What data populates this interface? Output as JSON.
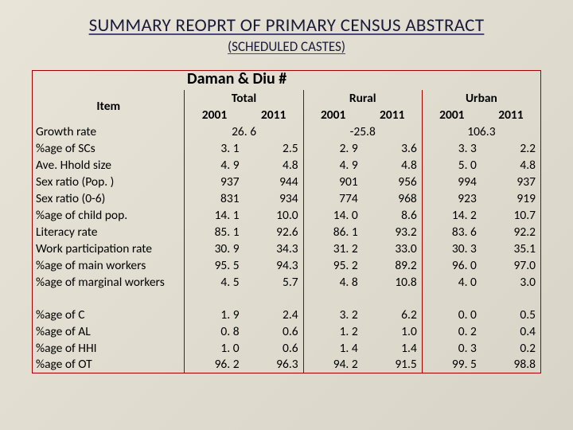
{
  "title": "SUMMARY REOPRT OF PRIMARY CENSUS ABSTRACT",
  "subtitle": "(SCHEDULED CASTES)",
  "region": "Daman & Diu #",
  "headers": {
    "item": "Item",
    "groups": [
      "Total",
      "Rural",
      "Urban"
    ],
    "years": [
      "2001",
      "2011"
    ]
  },
  "rows_top": [
    {
      "label": "Growth rate",
      "span": true,
      "vals": [
        "26. 6",
        "-25.8",
        "106.3"
      ]
    },
    {
      "label": "%age of SCs",
      "vals": [
        "3. 1",
        "2.5",
        "2. 9",
        "3.6",
        "3. 3",
        "2.2"
      ]
    },
    {
      "label": "Ave. Hhold size",
      "vals": [
        "4. 9",
        "4.8",
        "4. 9",
        "4.8",
        "5. 0",
        "4.8"
      ]
    },
    {
      "label": "Sex ratio (Pop. )",
      "vals": [
        "937",
        "944",
        "901",
        "956",
        "994",
        "937"
      ]
    },
    {
      "label": "Sex ratio (0-6)",
      "vals": [
        "831",
        "934",
        "774",
        "968",
        "923",
        "919"
      ]
    },
    {
      "label": "%age of child pop.",
      "vals": [
        "14. 1",
        "10.0",
        "14. 0",
        "8.6",
        "14. 2",
        "10.7"
      ]
    },
    {
      "label": "Literacy rate",
      "vals": [
        "85. 1",
        "92.6",
        "86. 1",
        "93.2",
        "83. 6",
        "92.2"
      ]
    },
    {
      "label": "Work participation rate",
      "vals": [
        "30. 9",
        "34.3",
        "31. 2",
        "33.0",
        "30. 3",
        "35.1"
      ]
    },
    {
      "label": "%age of main workers",
      "vals": [
        "95. 5",
        "94.3",
        "95. 2",
        "89.2",
        "96. 0",
        "97.0"
      ]
    },
    {
      "label": "%age of marginal workers",
      "vals": [
        "4. 5",
        "5.7",
        "4. 8",
        "10.8",
        "4. 0",
        "3.0"
      ]
    }
  ],
  "rows_bottom": [
    {
      "label": "%age of C",
      "vals": [
        "1. 9",
        "2.4",
        "3. 2",
        "6.2",
        "0. 0",
        "0.5"
      ]
    },
    {
      "label": "%age of AL",
      "vals": [
        "0. 8",
        "0.6",
        "1. 2",
        "1.0",
        "0. 2",
        "0.4"
      ]
    },
    {
      "label": "%age of HHI",
      "vals": [
        "1. 0",
        "0.6",
        "1. 4",
        "1.4",
        "0. 3",
        "0.2"
      ]
    },
    {
      "label": "%age of OT",
      "vals": [
        "96. 2",
        "96.3",
        "94. 2",
        "91.5",
        "99. 5",
        "98.8"
      ]
    }
  ]
}
